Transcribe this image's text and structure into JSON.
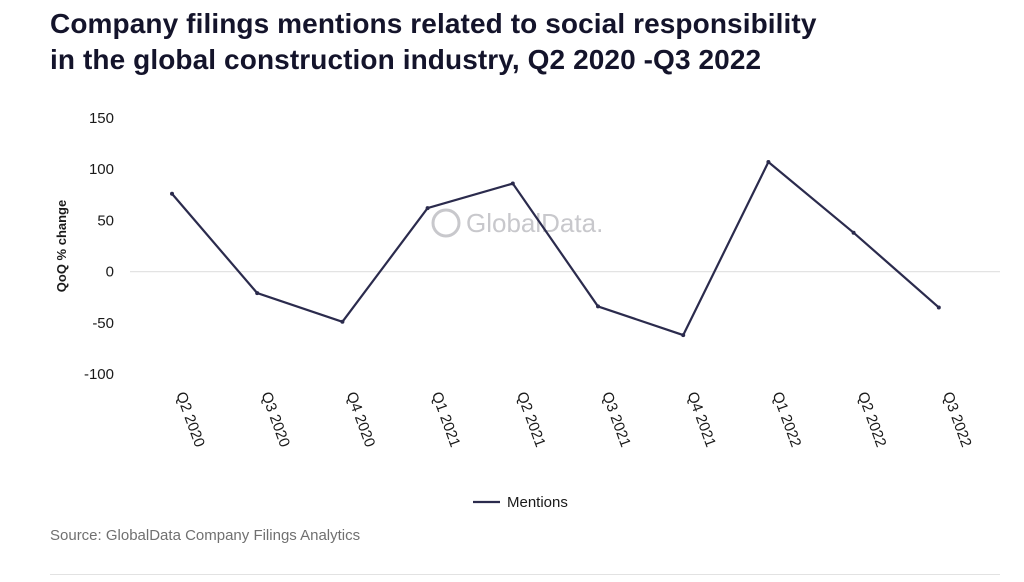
{
  "title": {
    "line1": "Company filings mentions related to social responsibility",
    "line2": "in the global construction industry, Q2 2020 -Q3 2022"
  },
  "source": "Source: GlobalData Company Filings Analytics",
  "watermark": "GlobalData.",
  "colors": {
    "line": "#2b2b4d",
    "zero_line": "#e3e3e3",
    "watermark": "#c8c8cc",
    "text": "#1a1a1a"
  },
  "chart_data": {
    "type": "line",
    "ylabel": "QoQ % change",
    "xlabel": "",
    "ylim": [
      -100,
      150
    ],
    "yticks": [
      150,
      100,
      50,
      0,
      -50,
      -100
    ],
    "categories": [
      "Q2 2020",
      "Q3 2020",
      "Q4 2020",
      "Q1 2021",
      "Q2 2021",
      "Q3 2021",
      "Q4 2021",
      "Q1 2022",
      "Q2 2022",
      "Q3 2022"
    ],
    "series": [
      {
        "name": "Mentions",
        "values": [
          76,
          -21,
          -49,
          62,
          86,
          -34,
          -62,
          107,
          38,
          -35
        ]
      }
    ],
    "legend": "bottom-center",
    "grid": "zero line only"
  }
}
